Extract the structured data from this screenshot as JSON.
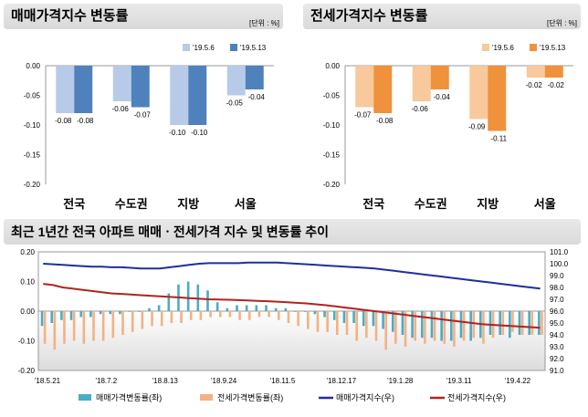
{
  "chart_data": [
    {
      "type": "bar",
      "title": "매매가격지수 변동률",
      "unit": "[단위 : %]",
      "categories": [
        "전국",
        "수도권",
        "지방",
        "서울"
      ],
      "series": [
        {
          "name": "'19.5.6",
          "color": "#b7cbe8",
          "values": [
            -0.08,
            -0.06,
            -0.1,
            -0.05
          ]
        },
        {
          "name": "'19.5.13",
          "color": "#4f81bd",
          "values": [
            -0.08,
            -0.07,
            -0.1,
            -0.04
          ]
        }
      ],
      "value_labels": [
        [
          "-0.08",
          "-0.08"
        ],
        [
          "-0.06",
          "-0.07"
        ],
        [
          "-0.10",
          "-0.10"
        ],
        [
          "-0.05",
          "-0.04"
        ]
      ],
      "yticks": [
        "0.00",
        "-0.05",
        "-0.10",
        "-0.15",
        "-0.20"
      ],
      "ylim": [
        -0.2,
        0.0
      ]
    },
    {
      "type": "bar",
      "title": "전세가격지수 변동률",
      "unit": "[단위 : %]",
      "categories": [
        "전국",
        "수도권",
        "지방",
        "서울"
      ],
      "series": [
        {
          "name": "'19.5.6",
          "color": "#f8c99c",
          "values": [
            -0.07,
            -0.06,
            -0.09,
            -0.02
          ]
        },
        {
          "name": "'19.5.13",
          "color": "#f0913c",
          "values": [
            -0.08,
            -0.04,
            -0.11,
            -0.02
          ]
        }
      ],
      "value_labels": [
        [
          "-0.07",
          "-0.08"
        ],
        [
          "-0.06",
          "-0.04"
        ],
        [
          "-0.09",
          "-0.11"
        ],
        [
          "-0.02",
          "-0.02"
        ]
      ],
      "yticks": [
        "0.00",
        "-0.05",
        "-0.10",
        "-0.15",
        "-0.20"
      ],
      "ylim": [
        -0.2,
        0.0
      ]
    },
    {
      "type": "bar+line",
      "title": "최근 1년간 전국 아파트 매매ㆍ전세가격 지수 및 변동률 추이",
      "x_ticks": [
        "'18.5.21",
        "'18.7.2",
        "'18.8.13",
        "'18.9.24",
        "'18.11.5",
        "'18.12.17",
        "'19.1.28",
        "'19.3.11",
        "'19.4.22"
      ],
      "y_left_ticks": [
        "0.20",
        "0.10",
        "0.00",
        "-0.10",
        "-0.20"
      ],
      "y_left_lim": [
        -0.2,
        0.2
      ],
      "y_right_ticks": [
        "101.0",
        "100.0",
        "99.0",
        "98.0",
        "97.0",
        "96.0",
        "95.0",
        "94.0",
        "93.0",
        "92.0",
        "91.0"
      ],
      "y_right_lim": [
        91.0,
        101.0
      ],
      "series": [
        {
          "name": "매매가격변동률(좌)",
          "color": "#4bacc6",
          "type": "bar",
          "values": [
            -0.05,
            -0.04,
            -0.03,
            -0.03,
            -0.02,
            -0.02,
            -0.01,
            -0.01,
            -0.01,
            0.0,
            0.0,
            0.01,
            0.02,
            0.06,
            0.09,
            0.1,
            0.09,
            0.07,
            0.03,
            0.01,
            0.02,
            0.02,
            0.02,
            0.02,
            0.01,
            0.01,
            0.0,
            0.0,
            -0.01,
            -0.02,
            -0.03,
            -0.04,
            -0.04,
            -0.05,
            -0.05,
            -0.06,
            -0.07,
            -0.08,
            -0.09,
            -0.09,
            -0.09,
            -0.1,
            -0.1,
            -0.09,
            -0.1,
            -0.09,
            -0.08,
            -0.08,
            -0.09,
            -0.08,
            -0.08,
            -0.08
          ]
        },
        {
          "name": "전세가격변동률(좌)",
          "color": "#f4b183",
          "type": "bar",
          "values": [
            -0.11,
            -0.13,
            -0.11,
            -0.1,
            -0.11,
            -0.1,
            -0.1,
            -0.09,
            -0.08,
            -0.07,
            -0.06,
            -0.05,
            -0.05,
            -0.04,
            -0.04,
            -0.03,
            -0.03,
            -0.02,
            -0.02,
            -0.02,
            -0.03,
            -0.03,
            -0.02,
            -0.02,
            -0.03,
            -0.04,
            -0.05,
            -0.06,
            -0.07,
            -0.07,
            -0.08,
            -0.08,
            -0.1,
            -0.09,
            -0.1,
            -0.13,
            -0.11,
            -0.12,
            -0.1,
            -0.11,
            -0.1,
            -0.11,
            -0.12,
            -0.1,
            -0.09,
            -0.11,
            -0.09,
            -0.08,
            -0.07,
            -0.08,
            -0.08,
            -0.08
          ]
        },
        {
          "name": "매매가격지수(우)",
          "color": "#1f2f9a",
          "type": "line",
          "values": [
            100.0,
            99.95,
            99.9,
            99.85,
            99.8,
            99.75,
            99.75,
            99.7,
            99.7,
            99.65,
            99.6,
            99.6,
            99.6,
            99.7,
            99.8,
            99.9,
            100.0,
            100.05,
            100.05,
            100.05,
            100.05,
            100.1,
            100.1,
            100.1,
            100.1,
            100.05,
            100.0,
            99.95,
            99.9,
            99.85,
            99.8,
            99.75,
            99.7,
            99.65,
            99.6,
            99.5,
            99.4,
            99.3,
            99.2,
            99.1,
            99.0,
            98.9,
            98.8,
            98.7,
            98.6,
            98.5,
            98.4,
            98.3,
            98.2,
            98.1,
            98.0,
            97.9
          ]
        },
        {
          "name": "전세가격지수(우)",
          "color": "#b22222",
          "type": "line",
          "values": [
            98.3,
            98.2,
            98.0,
            97.9,
            97.8,
            97.7,
            97.6,
            97.5,
            97.45,
            97.4,
            97.35,
            97.3,
            97.25,
            97.2,
            97.15,
            97.1,
            97.05,
            97.0,
            96.98,
            96.96,
            96.93,
            96.9,
            96.87,
            96.84,
            96.8,
            96.75,
            96.7,
            96.65,
            96.58,
            96.5,
            96.4,
            96.3,
            96.2,
            96.1,
            96.0,
            95.9,
            95.8,
            95.7,
            95.6,
            95.5,
            95.4,
            95.3,
            95.2,
            95.1,
            95.0,
            94.9,
            94.85,
            94.8,
            94.75,
            94.7,
            94.65,
            94.6
          ]
        }
      ]
    }
  ]
}
